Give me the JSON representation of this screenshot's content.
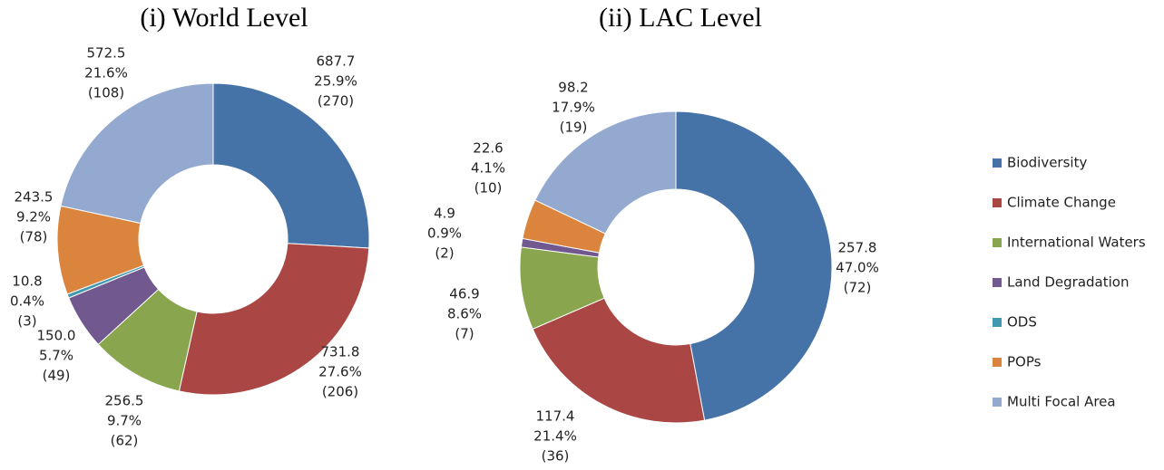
{
  "chart_data": [
    {
      "type": "pie",
      "title": "(i) World Level",
      "categories": [
        "Biodiversity",
        "Climate Change",
        "International Waters",
        "Land Degradation",
        "ODS",
        "POPs",
        "Multi Focal Area"
      ],
      "values": [
        687.7,
        731.8,
        256.5,
        150.0,
        10.8,
        243.5,
        572.5
      ],
      "value_labels": [
        "687.7",
        "731.8",
        "256.5",
        "150.0",
        "10.8",
        "243.5",
        "572.5"
      ],
      "percent_labels": [
        "25.9%",
        "27.6%",
        "9.7%",
        "5.7%",
        "0.4%",
        "9.2%",
        "21.6%"
      ],
      "count_labels": [
        "(270)",
        "(206)",
        "(62)",
        "(49)",
        "(3)",
        "(78)",
        "(108)"
      ],
      "colors": [
        "#4572a7",
        "#aa4643",
        "#89a54e",
        "#71588f",
        "#4198af",
        "#db843d",
        "#93a9cf"
      ]
    },
    {
      "type": "pie",
      "title": "(ii) LAC Level",
      "categories": [
        "Biodiversity",
        "Climate Change",
        "International Waters",
        "Land Degradation",
        "POPs",
        "Multi Focal Area"
      ],
      "values": [
        257.8,
        117.4,
        46.9,
        4.9,
        22.6,
        98.2
      ],
      "value_labels": [
        "257.8",
        "117.4",
        "46.9",
        "4.9",
        "22.6",
        "98.2"
      ],
      "percent_labels": [
        "47.0%",
        "21.4%",
        "8.6%",
        "0.9%",
        "4.1%",
        "17.9%"
      ],
      "count_labels": [
        "(72)",
        "(36)",
        "(7)",
        "(2)",
        "(10)",
        "(19)"
      ],
      "colors": [
        "#4572a7",
        "#aa4643",
        "#89a54e",
        "#71588f",
        "#db843d",
        "#93a9cf"
      ]
    }
  ],
  "legend": {
    "items": [
      {
        "name": "Biodiversity",
        "color": "#4572a7"
      },
      {
        "name": "Climate Change",
        "color": "#aa4643"
      },
      {
        "name": "International Waters",
        "color": "#89a54e"
      },
      {
        "name": "Land Degradation",
        "color": "#71588f"
      },
      {
        "name": "ODS",
        "color": "#4198af"
      },
      {
        "name": "POPs",
        "color": "#db843d"
      },
      {
        "name": "Multi Focal Area",
        "color": "#93a9cf"
      }
    ]
  }
}
